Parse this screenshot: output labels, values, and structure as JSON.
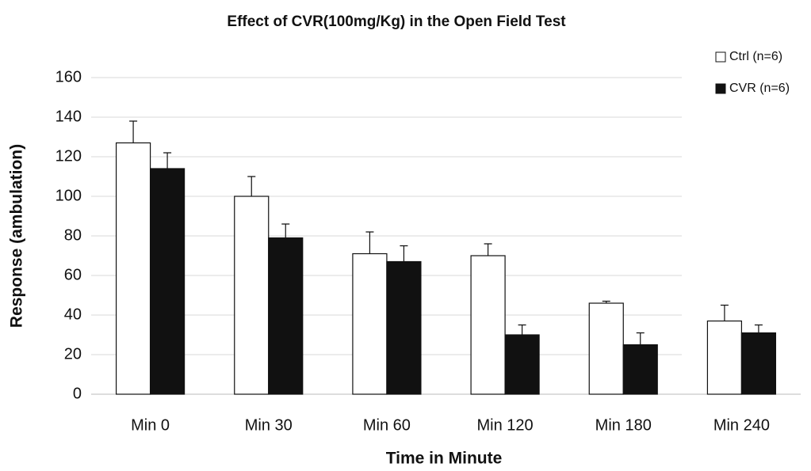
{
  "chart_data": {
    "type": "bar",
    "title": "Effect of CVR(100mg/Kg) in the Open Field Test",
    "x_label": "Time in Minute",
    "y_label": "Response (ambulation)",
    "categories": [
      "Min 0",
      "Min 30",
      "Min 60",
      "Min 120",
      "Min 180",
      "Min 240"
    ],
    "series": [
      {
        "name": "Ctrl (n=6)",
        "color": "#ffffff",
        "values": [
          127,
          100,
          71,
          70,
          46,
          37
        ],
        "errors": [
          11,
          10,
          11,
          6,
          1,
          8
        ]
      },
      {
        "name": "CVR (n=6)",
        "color": "#111111",
        "values": [
          114,
          79,
          67,
          30,
          25,
          31
        ],
        "errors": [
          8,
          7,
          8,
          5,
          6,
          4
        ]
      }
    ],
    "ylim": [
      0,
      160
    ],
    "yticks": [
      0,
      20,
      40,
      60,
      80,
      100,
      120,
      140,
      160
    ],
    "grid": true,
    "legend": "top-right"
  }
}
